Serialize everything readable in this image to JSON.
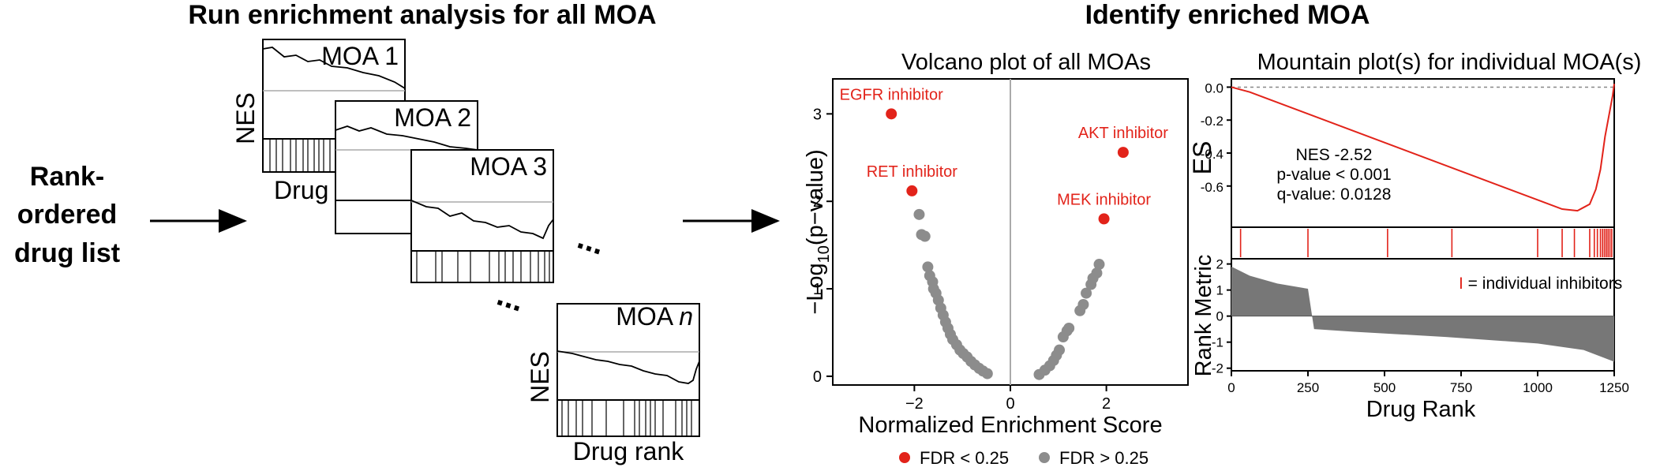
{
  "headings": {
    "left": "Run enrichment analysis for all MOA",
    "right": "Identify enriched MOA"
  },
  "input_label": [
    "Rank-",
    "ordered",
    "drug list"
  ],
  "panels": [
    {
      "title": "MOA 1"
    },
    {
      "title": "MOA 2"
    },
    {
      "title": "MOA 3"
    },
    {
      "title_prefix": "MOA ",
      "title_italic": "n"
    }
  ],
  "panel_axis": {
    "nes": "NES",
    "drug_partial": "Drug",
    "drug_rank": "Drug rank"
  },
  "ellipsis": "...",
  "volcano": {
    "title": "Volcano plot of all MOAs",
    "ylabel_parts": {
      "pre": "−Log",
      "sub": "10",
      "post": "(p−value)"
    },
    "xlabel": "Normalized Enrichment Score",
    "legend": {
      "sig": "FDR < 0.25",
      "nonsig": "FDR > 0.25"
    },
    "colors": {
      "sig": "#e2231a",
      "nonsig": "#8c8c8c"
    }
  },
  "mountain": {
    "title": "Mountain plot(s) for individual MOA(s)",
    "es_label": "ES",
    "rank_metric_label": "Rank Metric",
    "xlabel": "Drug Rank",
    "stats": [
      "NES -2.52",
      "p-value < 0.001",
      "q-value: 0.0128"
    ],
    "legend_mark": "I",
    "legend_text": " = individual inhibitors",
    "color": "#e2231a"
  },
  "chart_data": [
    {
      "type": "scatter",
      "title": "Volcano plot of all MOAs",
      "xlabel": "Normalized Enrichment Score",
      "ylabel": "−Log10(p−value)",
      "xlim": [
        -3.7,
        3.7
      ],
      "ylim": [
        -0.1,
        3.4
      ],
      "xticks": [
        "−2",
        "0",
        "2"
      ],
      "yticks": [
        "0",
        "1",
        "2",
        "3"
      ],
      "legend": "bottom",
      "series": [
        {
          "name": "FDR < 0.25",
          "points": [
            {
              "x": -2.48,
              "y": 3.0,
              "label": "EGFR inhibitor"
            },
            {
              "x": -2.05,
              "y": 2.12,
              "label": "RET inhibitor"
            },
            {
              "x": 2.35,
              "y": 2.56,
              "label": "AKT inhibitor"
            },
            {
              "x": 1.95,
              "y": 1.8,
              "label": "MEK inhibitor"
            }
          ]
        },
        {
          "name": "FDR > 0.25",
          "points": [
            {
              "x": -1.9,
              "y": 1.85
            },
            {
              "x": -1.85,
              "y": 1.62
            },
            {
              "x": -1.78,
              "y": 1.6
            },
            {
              "x": -1.72,
              "y": 1.25
            },
            {
              "x": -1.68,
              "y": 1.15
            },
            {
              "x": -1.62,
              "y": 1.08
            },
            {
              "x": -1.6,
              "y": 1.0
            },
            {
              "x": -1.55,
              "y": 0.95
            },
            {
              "x": -1.5,
              "y": 0.87
            },
            {
              "x": -1.45,
              "y": 0.78
            },
            {
              "x": -1.4,
              "y": 0.7
            },
            {
              "x": -1.35,
              "y": 0.62
            },
            {
              "x": -1.3,
              "y": 0.55
            },
            {
              "x": -1.25,
              "y": 0.48
            },
            {
              "x": -1.2,
              "y": 0.42
            },
            {
              "x": -1.12,
              "y": 0.36
            },
            {
              "x": -1.05,
              "y": 0.3
            },
            {
              "x": -0.98,
              "y": 0.26
            },
            {
              "x": -0.9,
              "y": 0.22
            },
            {
              "x": -0.82,
              "y": 0.17
            },
            {
              "x": -0.74,
              "y": 0.13
            },
            {
              "x": -0.65,
              "y": 0.09
            },
            {
              "x": -0.57,
              "y": 0.06
            },
            {
              "x": -0.48,
              "y": 0.03
            },
            {
              "x": 0.6,
              "y": 0.02
            },
            {
              "x": 0.72,
              "y": 0.07
            },
            {
              "x": 0.82,
              "y": 0.12
            },
            {
              "x": 0.9,
              "y": 0.18
            },
            {
              "x": 0.96,
              "y": 0.24
            },
            {
              "x": 1.02,
              "y": 0.3
            },
            {
              "x": 1.1,
              "y": 0.45
            },
            {
              "x": 1.18,
              "y": 0.52
            },
            {
              "x": 1.22,
              "y": 0.55
            },
            {
              "x": 1.45,
              "y": 0.75
            },
            {
              "x": 1.52,
              "y": 0.82
            },
            {
              "x": 1.58,
              "y": 0.95
            },
            {
              "x": 1.68,
              "y": 1.05
            },
            {
              "x": 1.72,
              "y": 1.12
            },
            {
              "x": 1.8,
              "y": 1.18
            },
            {
              "x": 1.85,
              "y": 1.28
            }
          ]
        }
      ]
    },
    {
      "type": "line",
      "title": "Mountain plot(s) for individual MOA(s)",
      "xlabel": "Drug Rank",
      "ylabel": "ES",
      "xlim": [
        0,
        1250
      ],
      "ylim": [
        -0.85,
        0.05
      ],
      "xticks": [
        "0",
        "250",
        "500",
        "750",
        "1000",
        "1250"
      ],
      "yticks": [
        "0.0",
        "-0.2",
        "-0.4",
        "-0.6"
      ],
      "series": [
        {
          "name": "ES",
          "x": [
            0,
            60,
            1080,
            1130,
            1150,
            1170,
            1190,
            1205,
            1220,
            1235,
            1245,
            1250
          ],
          "y": [
            0.0,
            -0.03,
            -0.74,
            -0.75,
            -0.73,
            -0.71,
            -0.62,
            -0.5,
            -0.3,
            -0.15,
            -0.05,
            0.02
          ]
        }
      ],
      "hits_x": [
        30,
        250,
        510,
        720,
        1000,
        1080,
        1120,
        1170,
        1185,
        1195,
        1205,
        1212,
        1218,
        1224,
        1230,
        1236,
        1242
      ]
    },
    {
      "type": "area",
      "xlabel": "Drug Rank",
      "ylabel": "Rank Metric",
      "xlim": [
        0,
        1250
      ],
      "ylim": [
        -2.1,
        2.2
      ],
      "xticks": [
        "0",
        "250",
        "500",
        "750",
        "1000",
        "1250"
      ],
      "yticks": [
        "2",
        "1",
        "0",
        "-1",
        "-2"
      ],
      "series": [
        {
          "name": "Rank Metric",
          "x": [
            0,
            60,
            150,
            250,
            270,
            400,
            700,
            1000,
            1150,
            1250
          ],
          "y": [
            1.9,
            1.55,
            1.25,
            1.05,
            -0.5,
            -0.6,
            -0.8,
            -1.05,
            -1.3,
            -1.75
          ]
        }
      ]
    }
  ]
}
